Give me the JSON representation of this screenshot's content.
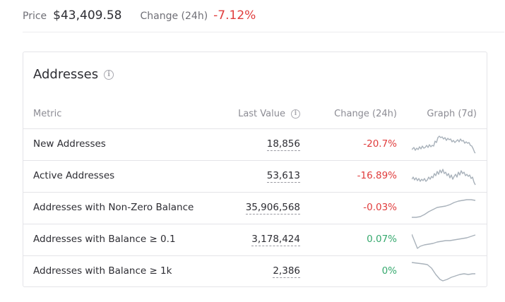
{
  "header": {
    "price_label": "Price",
    "price_value": "$43,409.58",
    "change_label": "Change (24h)",
    "change_value": "-7.12%"
  },
  "card": {
    "title": "Addresses",
    "columns": {
      "metric": "Metric",
      "last_value": "Last Value",
      "change": "Change (24h)",
      "graph": "Graph (7d)"
    },
    "rows": [
      {
        "metric": "New Addresses",
        "last_value": "18,856",
        "change": "-20.7%"
      },
      {
        "metric": "Active Addresses",
        "last_value": "53,613",
        "change": "-16.89%"
      },
      {
        "metric": "Addresses with Non-Zero Balance",
        "last_value": "35,906,568",
        "change": "-0.03%"
      },
      {
        "metric": "Addresses with Balance ≥ 0.1",
        "last_value": "3,178,424",
        "change": "0.07%"
      },
      {
        "metric": "Addresses with Balance ≥ 1k",
        "last_value": "2,386",
        "change": "0%"
      }
    ]
  },
  "colors": {
    "negative": "#e03c3c",
    "positive": "#36a96e",
    "sparkline": "#a9b2bb"
  },
  "icons": [
    "info-icon"
  ]
}
